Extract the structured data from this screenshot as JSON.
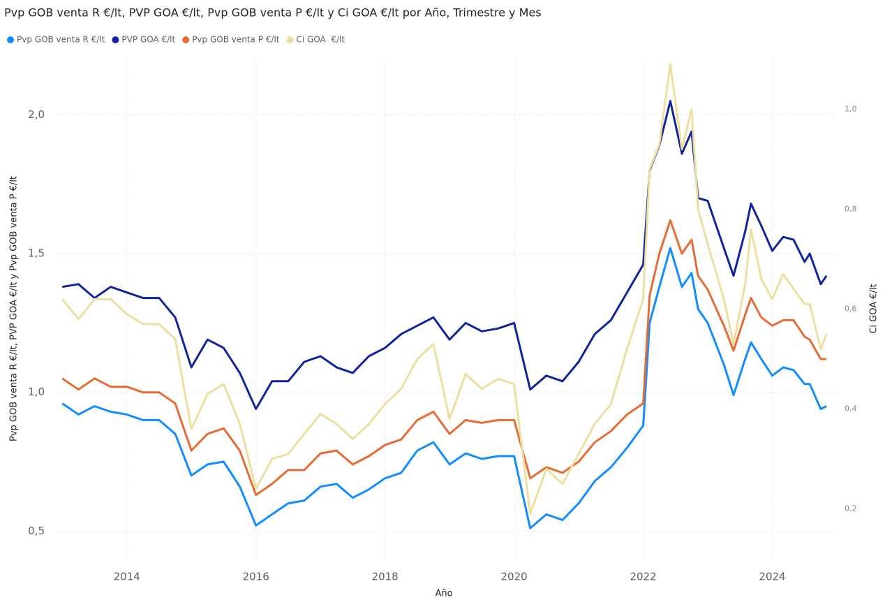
{
  "chart_data": {
    "type": "line",
    "title": "Pvp GOB venta R €/lt, PVP GOA €/lt, Pvp GOB venta P €/lt y Ci GOA €/lt por Año, Trimestre y Mes",
    "x_label": "Año",
    "y_label": "Pvp GOB venta R €/lt, PVP GOA €/lt y Pvp GOB venta P €/lt",
    "y2_label": "Ci GOA €/lt",
    "x": [
      2013.0,
      2013.25,
      2013.5,
      2013.75,
      2014.0,
      2014.25,
      2014.5,
      2014.75,
      2015.0,
      2015.25,
      2015.5,
      2015.75,
      2016.0,
      2016.25,
      2016.5,
      2016.75,
      2017.0,
      2017.25,
      2017.5,
      2017.75,
      2018.0,
      2018.25,
      2018.5,
      2018.75,
      2019.0,
      2019.25,
      2019.5,
      2019.75,
      2020.0,
      2020.25,
      2020.5,
      2020.75,
      2021.0,
      2021.25,
      2021.5,
      2021.75,
      2022.0,
      2022.1,
      2022.25,
      2022.42,
      2022.6,
      2022.75,
      2022.85,
      2023.0,
      2023.25,
      2023.4,
      2023.58,
      2023.67,
      2023.83,
      2024.0,
      2024.17,
      2024.33,
      2024.5,
      2024.58,
      2024.75,
      2024.84
    ],
    "xlim": [
      2012.9,
      2025.0
    ],
    "xticks": [
      2014,
      2016,
      2018,
      2020,
      2022,
      2024
    ],
    "ylim": [
      0.4,
      2.2
    ],
    "yticks": [
      {
        "value": 0.5,
        "label": "0,5"
      },
      {
        "value": 1.0,
        "label": "1,0"
      },
      {
        "value": 1.5,
        "label": "1,5"
      },
      {
        "value": 2.0,
        "label": "2,0"
      }
    ],
    "y2lim": [
      0.1,
      1.1
    ],
    "y2ticks": [
      {
        "value": 0.2,
        "label": "0,2"
      },
      {
        "value": 0.4,
        "label": "0,4"
      },
      {
        "value": 0.6,
        "label": "0,6"
      },
      {
        "value": 0.8,
        "label": "0,8"
      },
      {
        "value": 1.0,
        "label": "1,0"
      }
    ],
    "grid": true,
    "legend": "top-left",
    "series": [
      {
        "name": "Pvp GOB venta R €/lt",
        "color": "#118DFF",
        "values": [
          0.96,
          0.92,
          0.95,
          0.93,
          0.92,
          0.9,
          0.9,
          0.85,
          0.7,
          0.74,
          0.75,
          0.66,
          0.52,
          0.56,
          0.6,
          0.61,
          0.66,
          0.67,
          0.62,
          0.65,
          0.69,
          0.71,
          0.79,
          0.82,
          0.74,
          0.78,
          0.76,
          0.77,
          0.77,
          0.51,
          0.56,
          0.54,
          0.6,
          0.68,
          0.73,
          0.8,
          0.88,
          1.25,
          1.38,
          1.52,
          1.38,
          1.43,
          1.3,
          1.25,
          1.1,
          0.99,
          1.12,
          1.18,
          1.12,
          1.06,
          1.09,
          1.08,
          1.03,
          1.03,
          0.94,
          0.95
        ]
      },
      {
        "name": "PVP GOA €/lt",
        "color": "#12239E",
        "values": [
          1.38,
          1.39,
          1.34,
          1.38,
          1.36,
          1.34,
          1.34,
          1.27,
          1.09,
          1.19,
          1.16,
          1.07,
          0.94,
          1.04,
          1.04,
          1.11,
          1.13,
          1.09,
          1.07,
          1.13,
          1.16,
          1.21,
          1.24,
          1.27,
          1.19,
          1.25,
          1.22,
          1.23,
          1.25,
          1.01,
          1.06,
          1.04,
          1.11,
          1.21,
          1.26,
          1.36,
          1.46,
          1.8,
          1.89,
          2.05,
          1.86,
          1.94,
          1.7,
          1.69,
          1.52,
          1.42,
          1.58,
          1.68,
          1.6,
          1.51,
          1.56,
          1.55,
          1.47,
          1.5,
          1.39,
          1.42
        ]
      },
      {
        "name": "Pvp GOB venta P €/lt",
        "color": "#E66C37",
        "values": [
          1.05,
          1.01,
          1.05,
          1.02,
          1.02,
          1.0,
          1.0,
          0.96,
          0.79,
          0.85,
          0.87,
          0.79,
          0.63,
          0.67,
          0.72,
          0.72,
          0.78,
          0.79,
          0.74,
          0.77,
          0.81,
          0.83,
          0.9,
          0.93,
          0.85,
          0.9,
          0.89,
          0.9,
          0.9,
          0.69,
          0.73,
          0.71,
          0.75,
          0.82,
          0.86,
          0.92,
          0.96,
          1.35,
          1.5,
          1.62,
          1.5,
          1.55,
          1.42,
          1.37,
          1.24,
          1.15,
          1.28,
          1.34,
          1.27,
          1.24,
          1.26,
          1.26,
          1.2,
          1.19,
          1.12,
          1.12
        ]
      },
      {
        "name": "Ci GOA  €/lt",
        "color": "#EDDFA0",
        "axis": "y2",
        "values": [
          0.62,
          0.58,
          0.62,
          0.62,
          0.59,
          0.57,
          0.57,
          0.54,
          0.36,
          0.43,
          0.45,
          0.37,
          0.24,
          0.3,
          0.31,
          0.35,
          0.39,
          0.37,
          0.34,
          0.37,
          0.41,
          0.44,
          0.5,
          0.53,
          0.38,
          0.47,
          0.44,
          0.46,
          0.45,
          0.19,
          0.28,
          0.25,
          0.31,
          0.37,
          0.41,
          0.52,
          0.62,
          0.88,
          0.93,
          1.09,
          0.92,
          1.0,
          0.8,
          0.73,
          0.62,
          0.53,
          0.65,
          0.76,
          0.66,
          0.62,
          0.67,
          0.64,
          0.61,
          0.61,
          0.52,
          0.55
        ]
      }
    ]
  }
}
